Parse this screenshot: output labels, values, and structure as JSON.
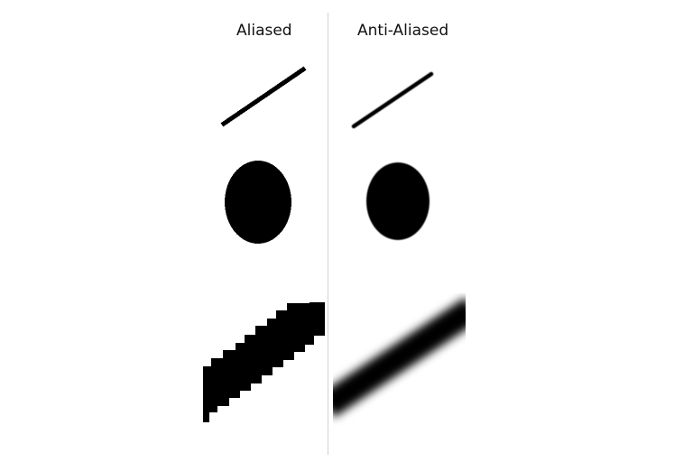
{
  "labels": {
    "aliased": "Aliased",
    "anti_aliased": "Anti-Aliased"
  },
  "colors": {
    "background": "#ffffff",
    "ink": "#000000",
    "divider": "#d2d2d2",
    "title_text": "#111111"
  }
}
